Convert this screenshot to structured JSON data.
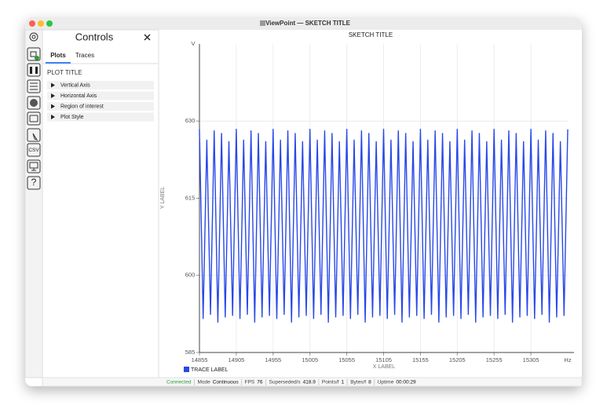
{
  "window": {
    "title": "ViewPoint — SKETCH TITLE"
  },
  "toolbar": {
    "csv": "CSV",
    "help": "?"
  },
  "controls": {
    "title": "Controls",
    "tabs": [
      "Plots",
      "Traces"
    ],
    "plot_title": "PLOT TITLE",
    "sections": [
      "Vertical Axis",
      "Horizontal Axis",
      "Region of interest",
      "Plot Style"
    ]
  },
  "chart_data": {
    "type": "line",
    "title": "SKETCH TITLE",
    "x_label": "X LABEL",
    "y_label": "Y LABEL",
    "x_unit": "Hz",
    "y_unit": "V",
    "x": [
      14855,
      14860,
      14865,
      14870,
      14875,
      14880,
      14885,
      14890,
      14895,
      14900,
      14905,
      14910,
      14915,
      14920,
      14925,
      14930,
      14935,
      14940,
      14945,
      14950,
      14955,
      14960,
      14965,
      14970,
      14975,
      14980,
      14985,
      14990,
      14995,
      15000,
      15005,
      15010,
      15015,
      15020,
      15025,
      15030,
      15035,
      15040,
      15045,
      15050,
      15055,
      15060,
      15065,
      15070,
      15075,
      15080,
      15085,
      15090,
      15095,
      15100,
      15105,
      15110,
      15115,
      15120,
      15125,
      15130,
      15135,
      15140,
      15145,
      15150,
      15155,
      15160,
      15165,
      15170,
      15175,
      15180,
      15185,
      15190,
      15195,
      15200,
      15205,
      15210,
      15215,
      15220,
      15225,
      15230,
      15235,
      15240,
      15245,
      15250,
      15255,
      15260,
      15265,
      15270,
      15275,
      15280,
      15285,
      15290,
      15295,
      15300,
      15305,
      15310,
      15315,
      15320,
      15325,
      15330,
      15335,
      15340,
      15345,
      15350,
      15355
    ],
    "series": [
      {
        "name": "TRACE LABEL",
        "color": "#2848e8",
        "values": [
          628.4,
          591.6,
          626.3,
          592.4,
          628.1,
          590.9,
          627.6,
          591.9,
          626.0,
          592.2,
          628.4,
          591.6,
          626.3,
          592.4,
          628.1,
          590.9,
          627.6,
          591.9,
          626.0,
          592.2,
          628.4,
          591.6,
          626.3,
          592.4,
          628.1,
          590.9,
          627.6,
          591.9,
          626.0,
          592.2,
          628.4,
          591.6,
          626.3,
          592.4,
          628.1,
          590.9,
          627.6,
          591.9,
          626.0,
          592.2,
          628.4,
          591.6,
          626.3,
          592.4,
          628.1,
          590.9,
          627.6,
          591.9,
          626.0,
          592.2,
          628.4,
          591.6,
          626.3,
          592.4,
          628.1,
          590.9,
          627.6,
          591.9,
          626.0,
          592.2,
          628.4,
          591.6,
          626.3,
          592.4,
          628.1,
          590.9,
          627.6,
          591.9,
          626.0,
          592.2,
          628.4,
          591.6,
          626.3,
          592.4,
          628.1,
          590.9,
          627.6,
          591.9,
          626.0,
          592.2,
          628.4,
          591.6,
          626.3,
          592.4,
          628.1,
          590.9,
          627.6,
          591.9,
          626.0,
          592.2,
          628.4,
          591.6,
          626.3,
          592.4,
          628.1,
          590.9,
          627.6,
          591.9,
          626.0,
          592.2,
          628.4
        ]
      }
    ],
    "xlim": [
      14855,
      15355
    ],
    "ylim": [
      585,
      645
    ],
    "xticks": [
      14855,
      14905,
      14955,
      15005,
      15055,
      15105,
      15155,
      15205,
      15255,
      15305
    ],
    "yticks": [
      585,
      600,
      615,
      630
    ],
    "grid": true
  },
  "status": {
    "connected": "Connected",
    "items": [
      {
        "label": "Mode",
        "value": "Continuous"
      },
      {
        "label": "FPS",
        "value": "76"
      },
      {
        "label": "Superseded/s",
        "value": "418.9"
      },
      {
        "label": "Points/f",
        "value": "1"
      },
      {
        "label": "Bytes/f",
        "value": "8"
      },
      {
        "label": "Uptime",
        "value": "00:00:29"
      }
    ]
  }
}
